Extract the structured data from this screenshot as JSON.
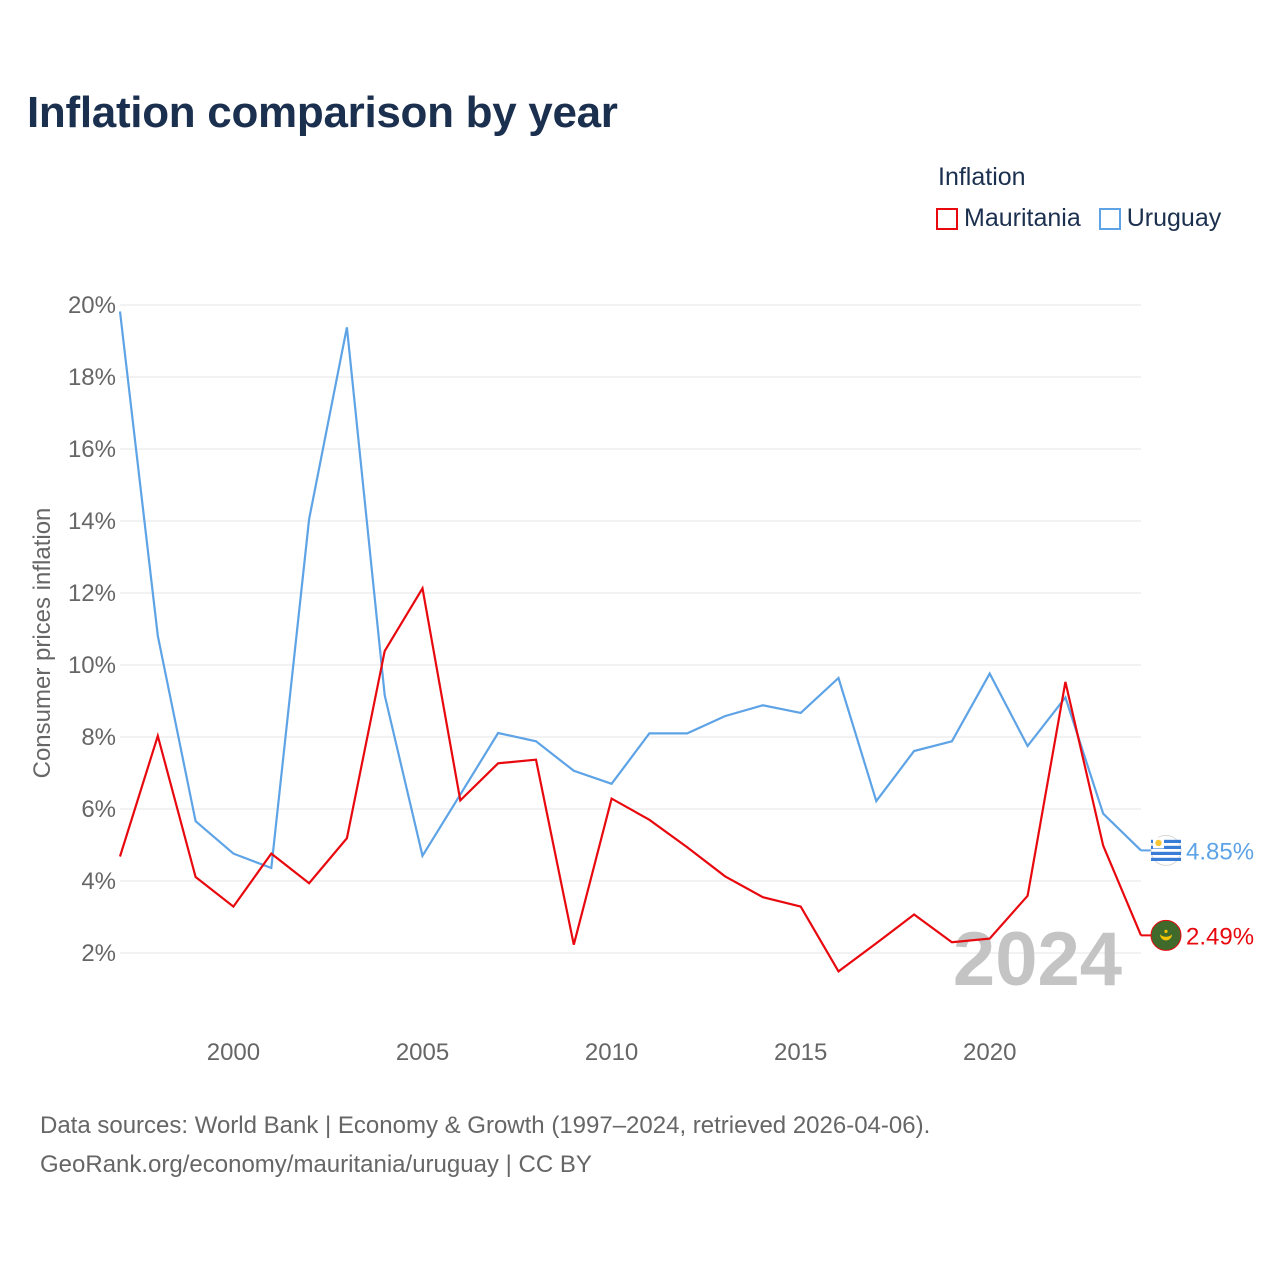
{
  "title": "Inflation comparison by year",
  "legend": {
    "title": "Inflation",
    "items": [
      {
        "label": "Mauritania",
        "color": "#e8090f"
      },
      {
        "label": "Uruguay",
        "color": "#5da3e6"
      }
    ]
  },
  "chart_data": {
    "type": "line",
    "title": "Inflation comparison by year",
    "xlabel": "",
    "ylabel": "Consumer prices inflation",
    "xlim": [
      1997,
      2024
    ],
    "ylim": [
      0,
      20
    ],
    "x_ticks": [
      2000,
      2005,
      2010,
      2015,
      2020
    ],
    "y_ticks": [
      2,
      4,
      6,
      8,
      10,
      12,
      14,
      16,
      18,
      20
    ],
    "y_tick_labels": [
      "2%",
      "4%",
      "6%",
      "8%",
      "10%",
      "12%",
      "14%",
      "16%",
      "18%",
      "20%"
    ],
    "grid": true,
    "watermark_year": "2024",
    "x": [
      1997,
      1998,
      1999,
      2000,
      2001,
      2002,
      2003,
      2004,
      2005,
      2006,
      2007,
      2008,
      2009,
      2010,
      2011,
      2012,
      2013,
      2014,
      2015,
      2016,
      2017,
      2018,
      2019,
      2020,
      2021,
      2022,
      2023,
      2024
    ],
    "series": [
      {
        "name": "Mauritania",
        "color": "#e8090f",
        "end_label": "2.49%",
        "flag_icon": "mauritania-flag-icon",
        "values": [
          4.68,
          8.03,
          4.11,
          3.29,
          4.76,
          3.94,
          5.19,
          10.39,
          12.13,
          6.24,
          7.27,
          7.37,
          2.23,
          6.29,
          5.7,
          4.94,
          4.13,
          3.55,
          3.29,
          1.49,
          2.27,
          3.07,
          2.3,
          2.4,
          3.59,
          9.53,
          4.98,
          2.49
        ]
      },
      {
        "name": "Uruguay",
        "color": "#5da3e6",
        "end_label": "4.85%",
        "flag_icon": "uruguay-flag-icon",
        "values": [
          19.82,
          10.81,
          5.66,
          4.76,
          4.36,
          14.05,
          19.38,
          9.16,
          4.7,
          6.4,
          8.11,
          7.88,
          7.06,
          6.7,
          8.1,
          8.1,
          8.58,
          8.88,
          8.67,
          9.64,
          6.22,
          7.61,
          7.88,
          9.76,
          7.75,
          9.1,
          5.87,
          4.85
        ]
      }
    ]
  },
  "footer": {
    "line1": "Data sources: World Bank | Economy & Growth (1997–2024, retrieved 2026-04-06).",
    "line2": "GeoRank.org/economy/mauritania/uruguay | CC BY"
  }
}
